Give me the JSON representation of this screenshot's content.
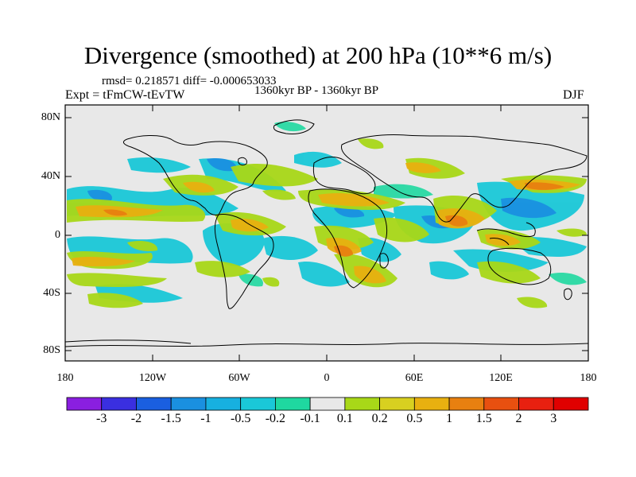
{
  "title": "Divergence (smoothed) at 200 hPa (10**6 m/s)",
  "stats_line": "rmsd= 0.218571 diff= -0.000653033",
  "experiment": "Expt = tFmCW-tEvTW",
  "period": "1360kyr BP - 1360kyr BP",
  "season": "DJF",
  "lat_ticks": [
    "80N",
    "40N",
    "0",
    "40S",
    "80S"
  ],
  "lon_ticks": [
    "180",
    "120W",
    "60W",
    "0",
    "60E",
    "120E",
    "180"
  ],
  "colorbar": {
    "labels": [
      "-3",
      "-2",
      "-1.5",
      "-1",
      "-0.5",
      "-0.2",
      "-0.1",
      "0.1",
      "0.2",
      "0.5",
      "1",
      "1.5",
      "2",
      "3"
    ],
    "colors": [
      "#8a1fe0",
      "#3a2fe0",
      "#1a5fe0",
      "#1a90e0",
      "#17b0e0",
      "#1ac8d8",
      "#1fd8a0",
      "#e8e8e8",
      "#a8d818",
      "#d8d020",
      "#e8b010",
      "#e88010",
      "#e85010",
      "#e82010",
      "#e00000"
    ]
  },
  "colors": {
    "background": "#e8e8e8",
    "coast": "#000000"
  }
}
